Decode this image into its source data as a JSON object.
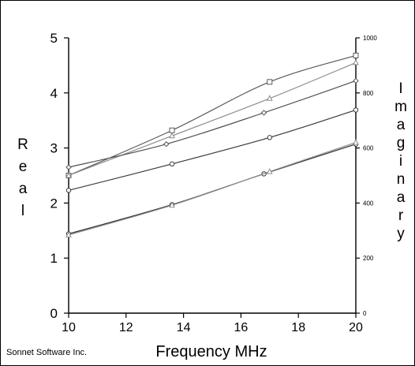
{
  "chart_data": {
    "type": "line",
    "xlabel": "Frequency MHz",
    "ylabel_left": "Real",
    "ylabel_right": "Imaginary",
    "credit": "Sonnet Software Inc.",
    "xlim": [
      10,
      20
    ],
    "ylim_left": [
      0,
      5
    ],
    "ylim_right": [
      0,
      1000
    ],
    "x_ticks": [
      10,
      12,
      14,
      16,
      18,
      20
    ],
    "y_ticks_left": [
      0,
      1,
      2,
      3,
      4,
      5
    ],
    "y_ticks_right": [
      0,
      200,
      400,
      600,
      800,
      1000
    ],
    "grid": false,
    "series": [
      {
        "marker": "square",
        "color": "#5a5a5a",
        "x": [
          10,
          13.6,
          17.0,
          20
        ],
        "y": [
          2.5,
          3.32,
          4.2,
          4.68
        ]
      },
      {
        "marker": "triangle",
        "color": "#8c8c8c",
        "x": [
          10,
          13.6,
          17.0,
          20
        ],
        "y": [
          2.5,
          3.22,
          3.9,
          4.55
        ]
      },
      {
        "marker": "diamond",
        "color": "#505050",
        "x": [
          10,
          13.4,
          16.8,
          20
        ],
        "y": [
          2.65,
          3.07,
          3.64,
          4.22
        ]
      },
      {
        "marker": "circle",
        "color": "#3a3a3a",
        "x": [
          10,
          13.6,
          17.0,
          20
        ],
        "y": [
          2.23,
          2.71,
          3.19,
          3.69
        ]
      },
      {
        "marker": "circle",
        "color": "#303030",
        "x": [
          10,
          13.6,
          16.8,
          20
        ],
        "y": [
          1.44,
          1.97,
          2.53,
          3.07
        ]
      },
      {
        "marker": "triangle",
        "color": "#909090",
        "x": [
          10,
          13.6,
          17.0,
          20
        ],
        "y": [
          1.42,
          1.96,
          2.57,
          3.1
        ]
      }
    ]
  }
}
